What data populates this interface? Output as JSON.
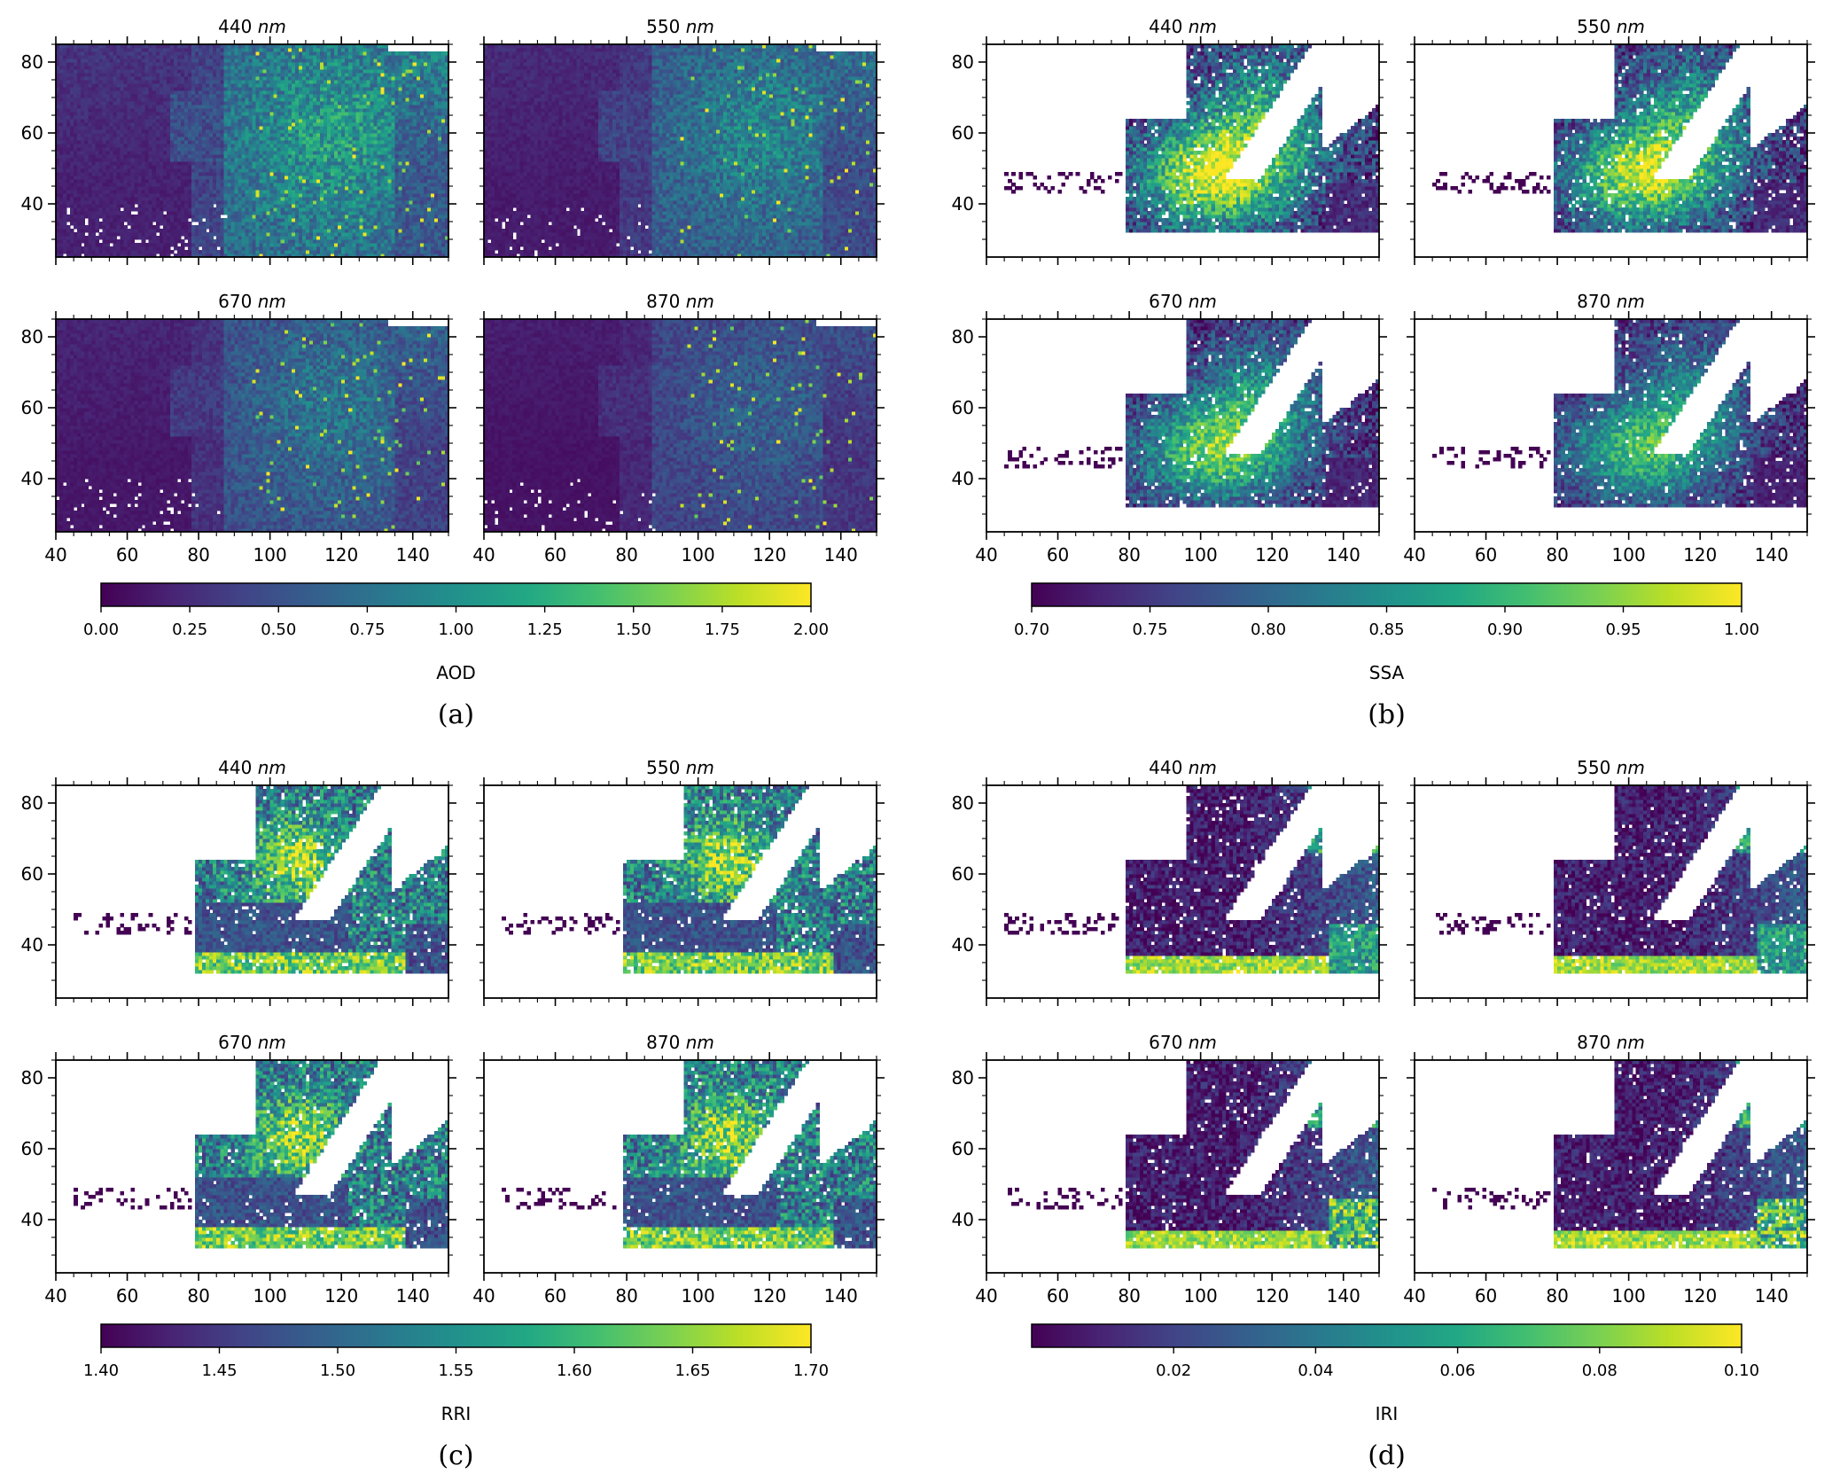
{
  "figure": {
    "panels": [
      {
        "letter": "(a)",
        "colorbar_label": "AOD",
        "colorbar_ticks": [
          "0.00",
          "0.25",
          "0.50",
          "0.75",
          "1.00",
          "1.25",
          "1.50",
          "1.75",
          "2.00"
        ],
        "subplot_titles": [
          {
            "value": "440",
            "unit": "nm"
          },
          {
            "value": "550",
            "unit": "nm"
          },
          {
            "value": "670",
            "unit": "nm"
          },
          {
            "value": "870",
            "unit": "nm"
          }
        ]
      },
      {
        "letter": "(b)",
        "colorbar_label": "SSA",
        "colorbar_ticks": [
          "0.70",
          "0.75",
          "0.80",
          "0.85",
          "0.90",
          "0.95",
          "1.00"
        ],
        "subplot_titles": [
          {
            "value": "440",
            "unit": "nm"
          },
          {
            "value": "550",
            "unit": "nm"
          },
          {
            "value": "670",
            "unit": "nm"
          },
          {
            "value": "870",
            "unit": "nm"
          }
        ]
      },
      {
        "letter": "(c)",
        "colorbar_label": "RRI",
        "colorbar_ticks": [
          "1.40",
          "1.45",
          "1.50",
          "1.55",
          "1.60",
          "1.65",
          "1.70"
        ],
        "subplot_titles": [
          {
            "value": "440",
            "unit": "nm"
          },
          {
            "value": "550",
            "unit": "nm"
          },
          {
            "value": "670",
            "unit": "nm"
          },
          {
            "value": "870",
            "unit": "nm"
          }
        ]
      },
      {
        "letter": "(d)",
        "colorbar_label": "IRI",
        "colorbar_ticks": [
          "0.02",
          "0.04",
          "0.06",
          "0.08",
          "0.10"
        ],
        "subplot_titles": [
          {
            "value": "440",
            "unit": "nm"
          },
          {
            "value": "550",
            "unit": "nm"
          },
          {
            "value": "670",
            "unit": "nm"
          },
          {
            "value": "870",
            "unit": "nm"
          }
        ]
      }
    ]
  },
  "chart_data": [
    {
      "type": "heatmap",
      "panel": "(a)",
      "quantity": "AOD",
      "subplots": [
        "440 nm",
        "550 nm",
        "670 nm",
        "870 nm"
      ],
      "x_ticks": [
        40,
        60,
        80,
        100,
        120,
        140
      ],
      "y_ticks": [
        40,
        60,
        80
      ],
      "xlim": [
        40,
        150
      ],
      "ylim": [
        25,
        85
      ],
      "colormap": "viridis",
      "colorbar_range": [
        0.0,
        2.0
      ],
      "colorbar_ticks": [
        0.0,
        0.25,
        0.5,
        0.75,
        1.0,
        1.25,
        1.5,
        1.75,
        2.0
      ],
      "colorbar_label": "AOD"
    },
    {
      "type": "heatmap",
      "panel": "(b)",
      "quantity": "SSA",
      "subplots": [
        "440 nm",
        "550 nm",
        "670 nm",
        "870 nm"
      ],
      "x_ticks": [
        40,
        60,
        80,
        100,
        120,
        140
      ],
      "y_ticks": [
        40,
        60,
        80
      ],
      "xlim": [
        40,
        150
      ],
      "ylim": [
        25,
        85
      ],
      "colormap": "viridis",
      "colorbar_range": [
        0.7,
        1.0
      ],
      "colorbar_ticks": [
        0.7,
        0.75,
        0.8,
        0.85,
        0.9,
        0.95,
        1.0
      ],
      "colorbar_label": "SSA"
    },
    {
      "type": "heatmap",
      "panel": "(c)",
      "quantity": "RRI",
      "subplots": [
        "440 nm",
        "550 nm",
        "670 nm",
        "870 nm"
      ],
      "x_ticks": [
        40,
        60,
        80,
        100,
        120,
        140
      ],
      "y_ticks": [
        40,
        60,
        80
      ],
      "xlim": [
        40,
        150
      ],
      "ylim": [
        25,
        85
      ],
      "colormap": "viridis",
      "colorbar_range": [
        1.4,
        1.7
      ],
      "colorbar_ticks": [
        1.4,
        1.45,
        1.5,
        1.55,
        1.6,
        1.65,
        1.7
      ],
      "colorbar_label": "RRI"
    },
    {
      "type": "heatmap",
      "panel": "(d)",
      "quantity": "IRI",
      "subplots": [
        "440 nm",
        "550 nm",
        "670 nm",
        "870 nm"
      ],
      "x_ticks": [
        40,
        60,
        80,
        100,
        120,
        140
      ],
      "y_ticks": [
        40,
        60,
        80
      ],
      "xlim": [
        40,
        150
      ],
      "ylim": [
        25,
        85
      ],
      "colormap": "viridis",
      "colorbar_range": [
        0.0,
        0.1
      ],
      "colorbar_ticks": [
        0.02,
        0.04,
        0.06,
        0.08,
        0.1
      ],
      "colorbar_label": "IRI"
    }
  ]
}
